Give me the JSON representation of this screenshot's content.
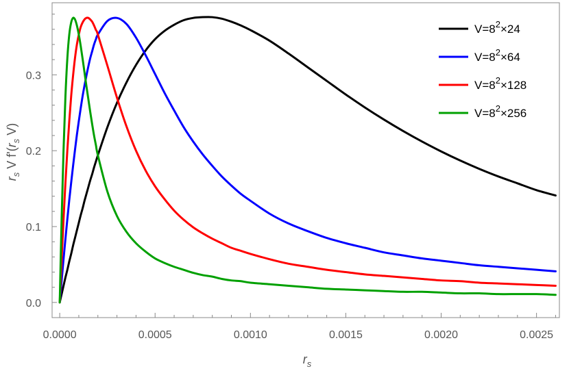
{
  "chart_data": {
    "type": "line",
    "title": "",
    "xlabel": "r_s",
    "ylabel": "r_s V f'(r_s V)",
    "xlim": [
      -4e-05,
      0.00262
    ],
    "ylim": [
      -0.02,
      0.395
    ],
    "xticks": [
      0.0,
      0.0005,
      0.001,
      0.0015,
      0.002,
      0.0025
    ],
    "xtick_labels": [
      "0.0000",
      "0.0005",
      "0.0010",
      "0.0015",
      "0.0020",
      "0.0025"
    ],
    "yticks": [
      0.0,
      0.1,
      0.2,
      0.3
    ],
    "ytick_labels": [
      "0.0",
      "0.1",
      "0.2",
      "0.3"
    ],
    "grid": false,
    "legend_position": "top-right",
    "x": [
      0,
      1e-05,
      2e-05,
      3e-05,
      4e-05,
      5e-05,
      6e-05,
      7e-05,
      8e-05,
      9e-05,
      0.0001,
      0.00011,
      0.00012,
      0.00013,
      0.00014,
      0.00015,
      0.00016,
      0.00017,
      0.00018,
      0.00019,
      0.0002,
      0.00025,
      0.0003,
      0.00035,
      0.0004,
      0.00045,
      0.0005,
      0.00055,
      0.0006,
      0.00065,
      0.0007,
      0.00075,
      0.0008,
      0.00085,
      0.0009,
      0.00095,
      0.001,
      0.0011,
      0.0012,
      0.0013,
      0.0014,
      0.0015,
      0.0016,
      0.0017,
      0.0018,
      0.0019,
      0.002,
      0.0021,
      0.0022,
      0.0023,
      0.0024,
      0.0025,
      0.0026
    ],
    "series": [
      {
        "name_parts": {
          "base": "V=8",
          "exp": "2",
          "rest": "×24"
        },
        "color": "#000000",
        "values": [
          0.0,
          0.011,
          0.022,
          0.033,
          0.043,
          0.054,
          0.064,
          0.075,
          0.085,
          0.095,
          0.105,
          0.115,
          0.124,
          0.134,
          0.143,
          0.152,
          0.161,
          0.169,
          0.178,
          0.186,
          0.194,
          0.231,
          0.263,
          0.29,
          0.313,
          0.332,
          0.347,
          0.358,
          0.366,
          0.372,
          0.375,
          0.376,
          0.376,
          0.374,
          0.37,
          0.365,
          0.359,
          0.345,
          0.328,
          0.31,
          0.292,
          0.274,
          0.257,
          0.241,
          0.226,
          0.212,
          0.199,
          0.187,
          0.176,
          0.166,
          0.157,
          0.148,
          0.141
        ]
      },
      {
        "name_parts": {
          "base": "V=8",
          "exp": "2",
          "rest": "×64"
        },
        "color": "#0000ff",
        "values": [
          0.0,
          0.029,
          0.057,
          0.084,
          0.11,
          0.135,
          0.158,
          0.18,
          0.201,
          0.221,
          0.239,
          0.256,
          0.272,
          0.286,
          0.299,
          0.311,
          0.322,
          0.331,
          0.34,
          0.347,
          0.353,
          0.371,
          0.375,
          0.367,
          0.349,
          0.326,
          0.301,
          0.276,
          0.253,
          0.231,
          0.212,
          0.195,
          0.18,
          0.166,
          0.154,
          0.143,
          0.134,
          0.117,
          0.104,
          0.094,
          0.085,
          0.078,
          0.072,
          0.066,
          0.062,
          0.058,
          0.055,
          0.052,
          0.049,
          0.047,
          0.045,
          0.043,
          0.041
        ]
      },
      {
        "name_parts": {
          "base": "V=8",
          "exp": "2",
          "rest": "×128"
        },
        "color": "#ff0000",
        "values": [
          0.0,
          0.057,
          0.11,
          0.158,
          0.201,
          0.239,
          0.272,
          0.299,
          0.322,
          0.34,
          0.353,
          0.363,
          0.369,
          0.373,
          0.375,
          0.375,
          0.373,
          0.37,
          0.365,
          0.359,
          0.353,
          0.312,
          0.27,
          0.232,
          0.2,
          0.174,
          0.153,
          0.136,
          0.121,
          0.109,
          0.099,
          0.091,
          0.084,
          0.078,
          0.072,
          0.068,
          0.064,
          0.057,
          0.051,
          0.047,
          0.043,
          0.04,
          0.037,
          0.035,
          0.033,
          0.031,
          0.029,
          0.028,
          0.026,
          0.025,
          0.024,
          0.023,
          0.022
        ]
      },
      {
        "name_parts": {
          "base": "V=8",
          "exp": "2",
          "rest": "×256"
        },
        "color": "#00a000",
        "values": [
          0.0,
          0.11,
          0.201,
          0.272,
          0.322,
          0.353,
          0.369,
          0.375,
          0.373,
          0.365,
          0.353,
          0.338,
          0.321,
          0.303,
          0.285,
          0.268,
          0.251,
          0.235,
          0.22,
          0.207,
          0.194,
          0.146,
          0.114,
          0.093,
          0.078,
          0.067,
          0.058,
          0.052,
          0.047,
          0.043,
          0.039,
          0.036,
          0.034,
          0.031,
          0.029,
          0.028,
          0.026,
          0.024,
          0.022,
          0.02,
          0.018,
          0.017,
          0.016,
          0.015,
          0.014,
          0.014,
          0.013,
          0.012,
          0.012,
          0.011,
          0.011,
          0.011,
          0.01
        ]
      }
    ]
  },
  "labels": {
    "xlabel_main": "r",
    "xlabel_sub": "s",
    "ylabel_parts": {
      "r1": "r",
      "s1": "s",
      "mid": " V f'(",
      "r2": "r",
      "s2": "s",
      "end": " V)"
    }
  }
}
